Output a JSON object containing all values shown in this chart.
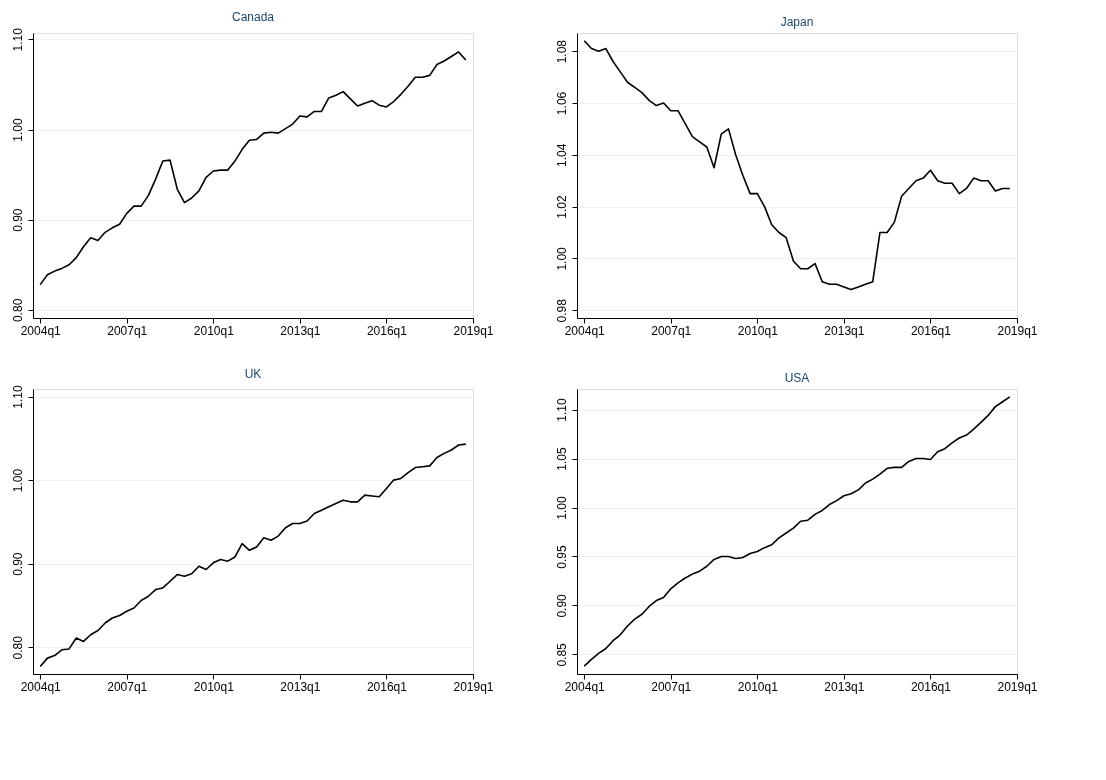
{
  "chart_data": [
    {
      "type": "line",
      "title": "Canada",
      "grid": "y",
      "ylim": [
        0.791,
        1.107
      ],
      "yticks": [
        {
          "value": 0.8,
          "label": "0.80"
        },
        {
          "value": 0.9,
          "label": "0.90"
        },
        {
          "value": 1.0,
          "label": "1.00"
        },
        {
          "value": 1.1,
          "label": "1.10"
        }
      ],
      "categories": [
        "2004q1",
        null,
        null,
        null,
        null,
        null,
        null,
        null,
        null,
        null,
        null,
        null,
        "2007q1",
        null,
        null,
        null,
        null,
        null,
        null,
        null,
        null,
        null,
        null,
        null,
        "2010q1",
        null,
        null,
        null,
        null,
        null,
        null,
        null,
        null,
        null,
        null,
        null,
        "2013q1",
        null,
        null,
        null,
        null,
        null,
        null,
        null,
        null,
        null,
        null,
        null,
        "2016q1",
        null,
        null,
        null,
        null,
        null,
        null,
        null,
        null,
        null,
        null,
        null,
        "2019q1"
      ],
      "series": [
        {
          "color": "#000000",
          "values": [
            0.828,
            0.839,
            0.843,
            0.846,
            0.85,
            0.858,
            0.87,
            0.88,
            0.877,
            0.886,
            0.891,
            0.895,
            0.907,
            0.915,
            0.915,
            0.927,
            0.945,
            0.965,
            0.966,
            0.934,
            0.919,
            0.924,
            0.932,
            0.947,
            0.954,
            0.955,
            0.955,
            0.965,
            0.978,
            0.988,
            0.989,
            0.996,
            0.997,
            0.996,
            1.001,
            1.006,
            1.015,
            1.014,
            1.02,
            1.02,
            1.035,
            1.038,
            1.042,
            1.034,
            1.026,
            1.029,
            1.032,
            1.027,
            1.025,
            1.031,
            1.039,
            1.048,
            1.058,
            1.058,
            1.06,
            1.072,
            1.076,
            1.081,
            1.086,
            1.077,
            null
          ]
        }
      ]
    },
    {
      "type": "line",
      "title": "Japan",
      "grid": "y",
      "ylim": [
        0.977,
        1.087
      ],
      "yticks": [
        {
          "value": 0.98,
          "label": "0.98"
        },
        {
          "value": 1.0,
          "label": "1.00"
        },
        {
          "value": 1.02,
          "label": "1.02"
        },
        {
          "value": 1.04,
          "label": "1.04"
        },
        {
          "value": 1.06,
          "label": "1.06"
        },
        {
          "value": 1.08,
          "label": "1.08"
        }
      ],
      "categories": [
        "2004q1",
        null,
        null,
        null,
        null,
        null,
        null,
        null,
        null,
        null,
        null,
        null,
        "2007q1",
        null,
        null,
        null,
        null,
        null,
        null,
        null,
        null,
        null,
        null,
        null,
        "2010q1",
        null,
        null,
        null,
        null,
        null,
        null,
        null,
        null,
        null,
        null,
        null,
        "2013q1",
        null,
        null,
        null,
        null,
        null,
        null,
        null,
        null,
        null,
        null,
        null,
        "2016q1",
        null,
        null,
        null,
        null,
        null,
        null,
        null,
        null,
        null,
        null,
        null,
        "2019q1"
      ],
      "series": [
        {
          "color": "#000000",
          "values": [
            1.084,
            1.081,
            1.08,
            1.081,
            1.076,
            1.072,
            1.068,
            1.066,
            1.064,
            1.061,
            1.059,
            1.06,
            1.057,
            1.057,
            1.052,
            1.047,
            1.045,
            1.043,
            1.035,
            1.048,
            1.05,
            1.04,
            1.032,
            1.025,
            1.025,
            1.02,
            1.013,
            1.01,
            1.008,
            0.999,
            0.996,
            0.996,
            0.998,
            0.991,
            0.99,
            0.99,
            0.989,
            0.988,
            0.989,
            0.99,
            0.991,
            1.01,
            1.01,
            1.014,
            1.024,
            1.027,
            1.03,
            1.031,
            1.034,
            1.03,
            1.029,
            1.029,
            1.025,
            1.027,
            1.031,
            1.03,
            1.03,
            1.026,
            1.027,
            1.027,
            null
          ]
        }
      ]
    },
    {
      "type": "line",
      "title": "UK",
      "grid": "y",
      "ylim": [
        0.768,
        1.109
      ],
      "yticks": [
        {
          "value": 0.8,
          "label": "0.80"
        },
        {
          "value": 0.9,
          "label": "0.90"
        },
        {
          "value": 1.0,
          "label": "1.00"
        },
        {
          "value": 1.1,
          "label": "1.10"
        }
      ],
      "categories": [
        "2004q1",
        null,
        null,
        null,
        null,
        null,
        null,
        null,
        null,
        null,
        null,
        null,
        "2007q1",
        null,
        null,
        null,
        null,
        null,
        null,
        null,
        null,
        null,
        null,
        null,
        "2010q1",
        null,
        null,
        null,
        null,
        null,
        null,
        null,
        null,
        null,
        null,
        null,
        "2013q1",
        null,
        null,
        null,
        null,
        null,
        null,
        null,
        null,
        null,
        null,
        null,
        "2016q1",
        null,
        null,
        null,
        null,
        null,
        null,
        null,
        null,
        null,
        null,
        null,
        "2019q1"
      ],
      "series": [
        {
          "color": "#000000",
          "values": [
            0.777,
            0.787,
            0.79,
            0.797,
            0.798,
            0.811,
            0.807,
            0.815,
            0.82,
            0.829,
            0.835,
            0.838,
            0.843,
            0.847,
            0.856,
            0.861,
            0.869,
            0.871,
            0.879,
            0.887,
            0.885,
            0.888,
            0.897,
            0.893,
            0.901,
            0.905,
            0.903,
            0.908,
            0.924,
            0.916,
            0.92,
            0.931,
            0.928,
            0.933,
            0.943,
            0.948,
            0.948,
            0.951,
            0.96,
            0.964,
            0.968,
            0.972,
            0.976,
            0.974,
            0.974,
            0.982,
            0.981,
            0.98,
            0.99,
            1.0,
            1.002,
            1.009,
            1.015,
            1.016,
            1.017,
            1.027,
            1.032,
            1.036,
            1.042,
            1.043,
            null
          ]
        }
      ]
    },
    {
      "type": "line",
      "title": "USA",
      "grid": "y",
      "ylim": [
        0.83,
        1.121
      ],
      "yticks": [
        {
          "value": 0.85,
          "label": "0.85"
        },
        {
          "value": 0.9,
          "label": "0.90"
        },
        {
          "value": 0.95,
          "label": "0.95"
        },
        {
          "value": 1.0,
          "label": "1.00"
        },
        {
          "value": 1.05,
          "label": "1.05"
        },
        {
          "value": 1.1,
          "label": "1.10"
        }
      ],
      "categories": [
        "2004q1",
        null,
        null,
        null,
        null,
        null,
        null,
        null,
        null,
        null,
        null,
        null,
        "2007q1",
        null,
        null,
        null,
        null,
        null,
        null,
        null,
        null,
        null,
        null,
        null,
        "2010q1",
        null,
        null,
        null,
        null,
        null,
        null,
        null,
        null,
        null,
        null,
        null,
        "2013q1",
        null,
        null,
        null,
        null,
        null,
        null,
        null,
        null,
        null,
        null,
        null,
        "2016q1",
        null,
        null,
        null,
        null,
        null,
        null,
        null,
        null,
        null,
        null,
        null,
        "2019q1"
      ],
      "series": [
        {
          "color": "#000000",
          "values": [
            0.838,
            0.845,
            0.851,
            0.856,
            0.864,
            0.87,
            0.879,
            0.886,
            0.891,
            0.899,
            0.905,
            0.908,
            0.917,
            0.923,
            0.928,
            0.932,
            0.935,
            0.94,
            0.947,
            0.95,
            0.95,
            0.948,
            0.949,
            0.953,
            0.955,
            0.959,
            0.962,
            0.969,
            0.974,
            0.979,
            0.986,
            0.987,
            0.993,
            0.997,
            1.003,
            1.007,
            1.012,
            1.014,
            1.018,
            1.025,
            1.029,
            1.034,
            1.04,
            1.041,
            1.041,
            1.047,
            1.05,
            1.05,
            1.049,
            1.057,
            1.06,
            1.066,
            1.071,
            1.074,
            1.08,
            1.087,
            1.094,
            1.103,
            1.108,
            1.113,
            null
          ]
        }
      ]
    }
  ]
}
